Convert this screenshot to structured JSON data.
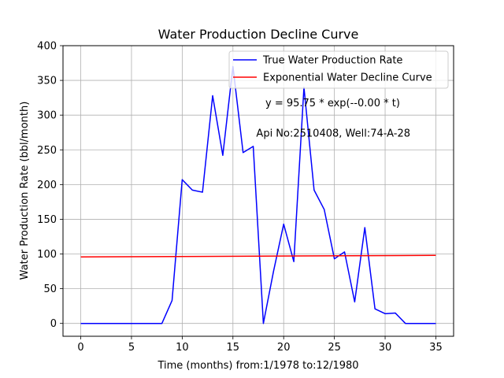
{
  "chart_data": {
    "type": "line",
    "title": "Water Production Decline Curve",
    "xlabel": "Time (months) from:1/1978 to:12/1980",
    "ylabel": "Water Production Rate (bbl/month)",
    "xlim": [
      -1.75,
      36.75
    ],
    "ylim": [
      -18.5,
      400
    ],
    "xticks": [
      0,
      5,
      10,
      15,
      20,
      25,
      30,
      35
    ],
    "yticks": [
      0,
      50,
      100,
      150,
      200,
      250,
      300,
      350,
      400
    ],
    "grid": true,
    "legend_position": "top-right",
    "annotations": [
      {
        "text": "y = 95.75 * exp(--0.00 * t)",
        "x": 18.2,
        "y": 318
      },
      {
        "text": "Api No:2510408, Well:74-A-28",
        "x": 17.3,
        "y": 274
      }
    ],
    "series": [
      {
        "name": "True Water Production Rate",
        "color": "#0000ff",
        "x": [
          0,
          1,
          2,
          3,
          4,
          5,
          6,
          7,
          8,
          9,
          10,
          11,
          12,
          13,
          14,
          15,
          16,
          17,
          18,
          19,
          20,
          21,
          22,
          23,
          24,
          25,
          26,
          27,
          28,
          29,
          30,
          31,
          32,
          33,
          34,
          35
        ],
        "y": [
          0,
          0,
          0,
          0,
          0,
          0,
          0,
          0,
          0,
          33,
          207,
          192,
          189,
          328,
          242,
          370,
          246,
          255,
          0,
          75,
          143,
          89,
          340,
          192,
          164,
          93,
          103,
          31,
          138,
          21,
          14,
          15,
          0,
          0,
          0,
          0
        ]
      },
      {
        "name": "Exponential Water Decline Curve",
        "color": "#ff0000",
        "x": [
          0,
          35
        ],
        "y": [
          95.75,
          98
        ]
      }
    ]
  }
}
